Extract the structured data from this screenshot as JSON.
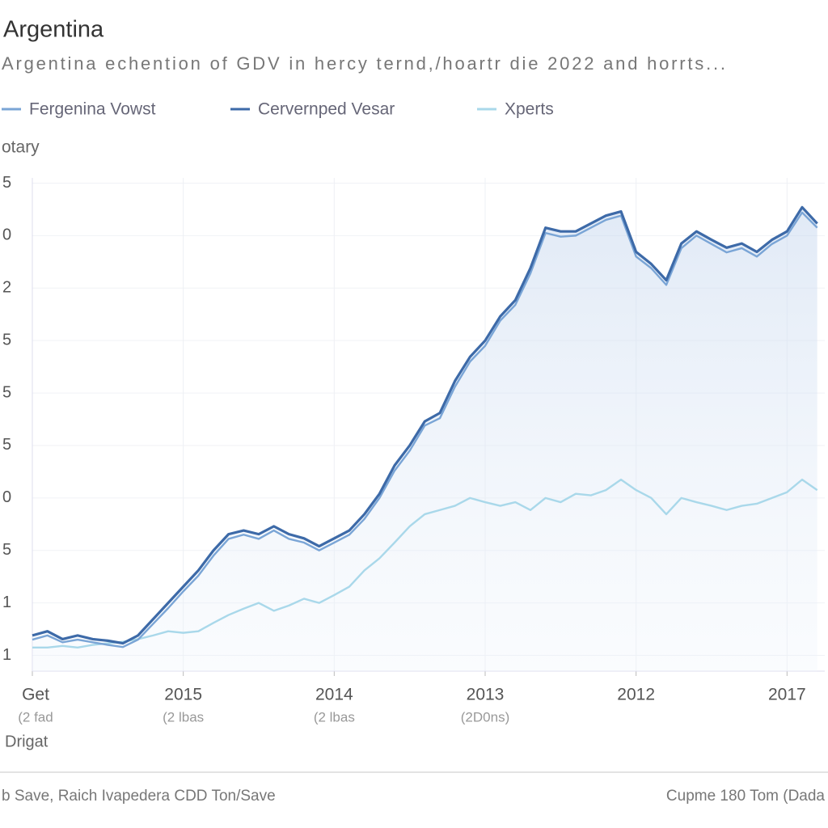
{
  "chart_data": {
    "type": "line",
    "title": "Argentina",
    "subtitle": "Argentina echention of GDV in hercy ternd,/hoartr die 2022 and horrts...",
    "ylabel": "otary",
    "xlabel": "Drigat",
    "footer_left": "b Save, Raich Ivapedera CDD Ton/Save",
    "footer_right": "Cupme 180 Tom (Dada",
    "x": [
      0,
      1,
      2,
      3,
      4,
      5,
      6,
      7,
      8,
      9,
      10,
      11,
      12,
      13,
      14,
      15,
      16,
      17,
      18,
      19,
      20,
      21,
      22,
      23,
      24,
      25,
      26,
      27,
      28,
      29,
      30,
      31,
      32,
      33,
      34,
      35,
      36,
      37,
      38,
      39,
      40,
      41,
      42,
      43,
      44,
      45,
      46,
      47,
      48,
      49,
      50,
      51,
      52
    ],
    "xlim": [
      0,
      52.5
    ],
    "xticks": [
      {
        "value": 0,
        "label": "Get"
      },
      {
        "value": 10,
        "label": "2015"
      },
      {
        "value": 20,
        "label": "2014"
      },
      {
        "value": 30,
        "label": "2013"
      },
      {
        "value": 40,
        "label": "2012"
      },
      {
        "value": 50,
        "label": "2017"
      }
    ],
    "xtick_sublabels": [
      {
        "value": 0,
        "label": "(2 fad"
      },
      {
        "value": 10,
        "label": "(2 lbas"
      },
      {
        "value": 20,
        "label": "(2 lbas"
      },
      {
        "value": 30,
        "label": "(2D0ns)"
      }
    ],
    "ylim": [
      0.7,
      10.1
    ],
    "yticks": [
      {
        "value": 1,
        "label": "1"
      },
      {
        "value": 2,
        "label": "1"
      },
      {
        "value": 3,
        "label": "5"
      },
      {
        "value": 4,
        "label": "0"
      },
      {
        "value": 5,
        "label": "5"
      },
      {
        "value": 6,
        "label": "5"
      },
      {
        "value": 7,
        "label": "5"
      },
      {
        "value": 8,
        "label": "2"
      },
      {
        "value": 9,
        "label": "0"
      },
      {
        "value": 10,
        "label": "5"
      }
    ],
    "grid": true,
    "series": [
      {
        "name": "Fergenina Vowst",
        "color": "#7aa5d6",
        "values": [
          1.3,
          1.38,
          1.25,
          1.3,
          1.25,
          1.2,
          1.16,
          1.3,
          1.6,
          1.9,
          2.22,
          2.52,
          2.9,
          3.22,
          3.3,
          3.22,
          3.38,
          3.22,
          3.15,
          3.0,
          3.15,
          3.3,
          3.6,
          4.0,
          4.52,
          4.9,
          5.38,
          5.52,
          6.12,
          6.6,
          6.9,
          7.38,
          7.68,
          8.28,
          9.05,
          8.98,
          9.0,
          9.15,
          9.3,
          9.38,
          8.6,
          8.38,
          8.06,
          8.76,
          9.0,
          8.84,
          8.68,
          8.76,
          8.6,
          8.84,
          9.0,
          9.44,
          9.15
        ]
      },
      {
        "name": "Cervernped Vesar",
        "color": "#3d6aa8",
        "values": [
          1.38,
          1.46,
          1.31,
          1.38,
          1.31,
          1.28,
          1.23,
          1.38,
          1.69,
          2.0,
          2.31,
          2.62,
          3.0,
          3.31,
          3.38,
          3.31,
          3.46,
          3.31,
          3.23,
          3.08,
          3.23,
          3.38,
          3.69,
          4.08,
          4.62,
          5.0,
          5.46,
          5.62,
          6.23,
          6.69,
          7.0,
          7.46,
          7.77,
          8.38,
          9.15,
          9.08,
          9.08,
          9.23,
          9.38,
          9.46,
          8.69,
          8.46,
          8.15,
          8.85,
          9.08,
          8.92,
          8.77,
          8.85,
          8.69,
          8.92,
          9.08,
          9.54,
          9.23
        ]
      },
      {
        "name": "Xperts",
        "color": "#a9d8ea",
        "values": [
          1.15,
          1.15,
          1.18,
          1.15,
          1.2,
          1.23,
          1.26,
          1.31,
          1.38,
          1.46,
          1.43,
          1.46,
          1.62,
          1.77,
          1.89,
          2.0,
          1.85,
          1.95,
          2.08,
          2.0,
          2.15,
          2.31,
          2.62,
          2.85,
          3.15,
          3.46,
          3.69,
          3.77,
          3.85,
          4.0,
          3.92,
          3.85,
          3.92,
          3.77,
          4.0,
          3.92,
          4.08,
          4.05,
          4.15,
          4.35,
          4.15,
          4.0,
          3.69,
          4.0,
          3.92,
          3.85,
          3.77,
          3.85,
          3.89,
          4.0,
          4.11,
          4.35,
          4.15
        ]
      }
    ]
  }
}
